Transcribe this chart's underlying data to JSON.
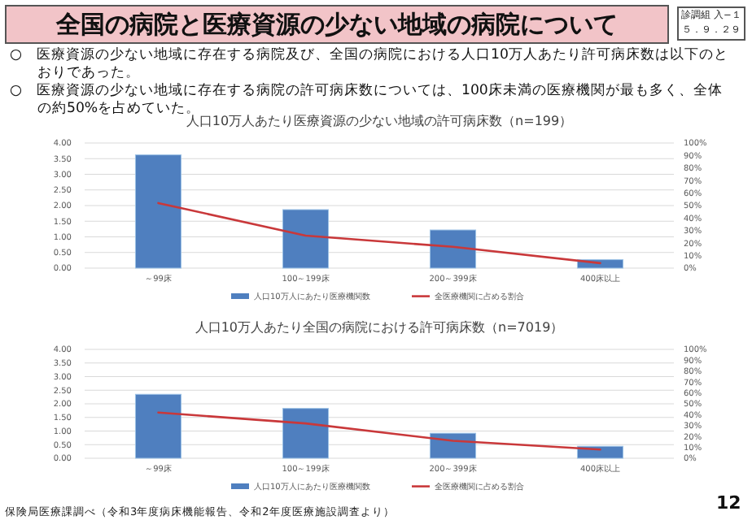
{
  "chart_data": [
    {
      "type": "bar",
      "title": "人口10万人あたり医療資源の少ない地域の許可病床数（n=199）",
      "categories": [
        "～99床",
        "100～199床",
        "200～399床",
        "400床以上"
      ],
      "series": [
        {
          "name": "人口10万人にあたり医療機関数",
          "color": "#4f7fbf",
          "values": [
            3.62,
            1.87,
            1.22,
            0.27
          ]
        },
        {
          "name": "全医療機関に占める割合",
          "type": "line",
          "axis": "y2",
          "color": "#c9383a",
          "values": [
            52,
            26,
            17,
            4
          ]
        }
      ],
      "ylim": [
        0,
        4
      ],
      "yticks": [
        {
          "value": 0,
          "label": "0.00"
        },
        {
          "value": 0.5,
          "label": "0.50"
        },
        {
          "value": 1,
          "label": "1.00"
        },
        {
          "value": 1.5,
          "label": "1.50"
        },
        {
          "value": 2,
          "label": "2.00"
        },
        {
          "value": 2.5,
          "label": "2.50"
        },
        {
          "value": 3,
          "label": "3.00"
        },
        {
          "value": 3.5,
          "label": "3.50"
        },
        {
          "value": 4,
          "label": "4.00"
        }
      ],
      "y2lim": [
        0,
        100
      ],
      "y2ticks": [
        {
          "value": 0,
          "label": "0%"
        },
        {
          "value": 10,
          "label": "10%"
        },
        {
          "value": 20,
          "label": "20%"
        },
        {
          "value": 30,
          "label": "30%"
        },
        {
          "value": 40,
          "label": "40%"
        },
        {
          "value": 50,
          "label": "50%"
        },
        {
          "value": 60,
          "label": "60%"
        },
        {
          "value": 70,
          "label": "70%"
        },
        {
          "value": 80,
          "label": "80%"
        },
        {
          "value": 90,
          "label": "90%"
        },
        {
          "value": 100,
          "label": "100%"
        }
      ],
      "grid": "y",
      "legend": "bottom",
      "annotations": [
        "全国の病院と医療資源の少ない地域の病院について",
        "診調組 入−１",
        "５．９．２９",
        "○　医療資源の少ない地域に存在する病院及び、全国の病院における人口10万人あたり許可病床数は以下のとおりであった。",
        "○　医療資源の少ない地域に存在する病院の許可病床数については、100床未満の医療機関が最も多く、全体の約50%を占めていた。"
      ]
    },
    {
      "type": "bar",
      "title": "人口10万人あたり全国の病院における許可病床数（n=7019）",
      "categories": [
        "～99床",
        "100～199床",
        "200～399床",
        "400床以上"
      ],
      "series": [
        {
          "name": "人口10万人にあたり医療機関数",
          "color": "#4f7fbf",
          "values": [
            2.35,
            1.83,
            0.92,
            0.44
          ]
        },
        {
          "name": "全医療機関に占める割合",
          "type": "line",
          "axis": "y2",
          "color": "#c9383a",
          "values": [
            42,
            32,
            16,
            8
          ]
        }
      ],
      "ylim": [
        0,
        4
      ],
      "yticks": [
        {
          "value": 0,
          "label": "0.00"
        },
        {
          "value": 0.5,
          "label": "0.50"
        },
        {
          "value": 1,
          "label": "1.00"
        },
        {
          "value": 1.5,
          "label": "1.50"
        },
        {
          "value": 2,
          "label": "2.00"
        },
        {
          "value": 2.5,
          "label": "2.50"
        },
        {
          "value": 3,
          "label": "3.00"
        },
        {
          "value": 3.5,
          "label": "3.50"
        },
        {
          "value": 4,
          "label": "4.00"
        }
      ],
      "y2lim": [
        0,
        100
      ],
      "y2ticks": [
        {
          "value": 0,
          "label": "0%"
        },
        {
          "value": 10,
          "label": "10%"
        },
        {
          "value": 20,
          "label": "20%"
        },
        {
          "value": 30,
          "label": "30%"
        },
        {
          "value": 40,
          "label": "40%"
        },
        {
          "value": 50,
          "label": "50%"
        },
        {
          "value": 60,
          "label": "60%"
        },
        {
          "value": 70,
          "label": "70%"
        },
        {
          "value": 80,
          "label": "80%"
        },
        {
          "value": 90,
          "label": "90%"
        },
        {
          "value": 100,
          "label": "100%"
        }
      ],
      "grid": "y",
      "legend": "bottom",
      "annotations": [
        "保険局医療課調べ（令和3年度病床機能報告、令和2年度医療施設調査より）",
        "12"
      ]
    }
  ]
}
